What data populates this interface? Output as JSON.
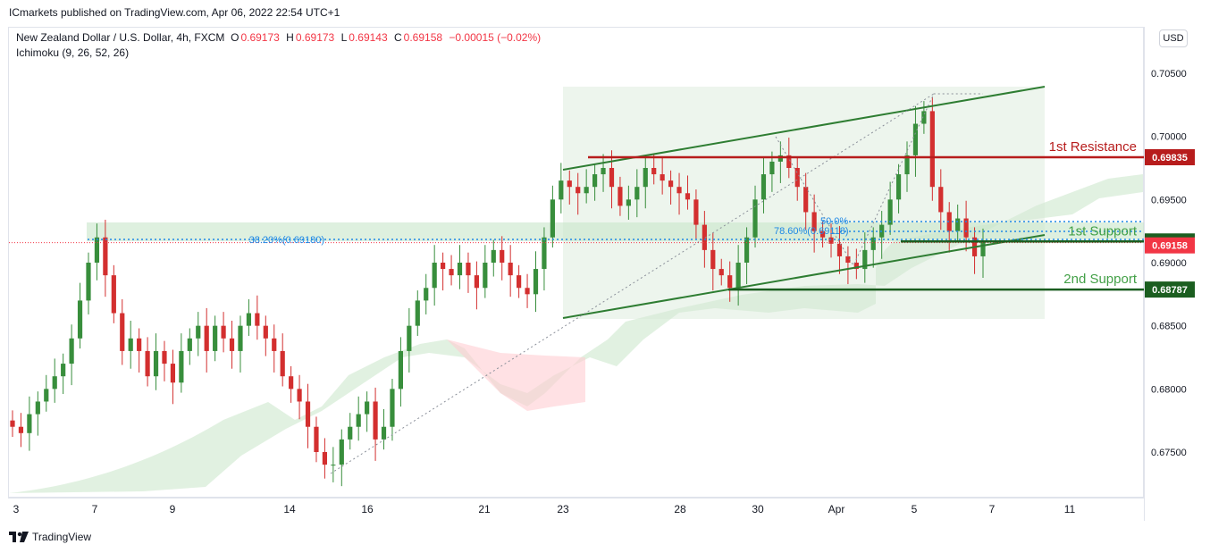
{
  "publisher": "ICmarkets published on TradingView.com, Apr 06, 2022 22:54 UTC+1",
  "legend": {
    "symbol": "New Zealand Dollar / U.S. Dollar, 4h, FXCM",
    "open_label": "O",
    "open": "0.69173",
    "high_label": "H",
    "high": "0.69173",
    "low_label": "L",
    "low": "0.69143",
    "close_label": "C",
    "close": "0.69158",
    "change": "−0.00015 (−0.02%)",
    "indicator": "Ichimoku (9, 26, 52, 26)"
  },
  "currency_button": "USD",
  "brand": "TradingView",
  "colors": {
    "resistance": "#b71c1c",
    "support": "#1b5e20",
    "support_label": "#43a047",
    "fib": "#1e88e5",
    "up_candle": "#26a69a",
    "candle_up_fill": "#388e3c",
    "down_candle": "#d32f2f",
    "cloud_green": "#c8e6c9",
    "cloud_red": "#ffcdd2",
    "current_price": "#f23645"
  },
  "chart_data": {
    "type": "candlestick",
    "y_axis": {
      "ticks": [
        "0.70500",
        "0.70000",
        "0.69500",
        "0.69000",
        "0.68500",
        "0.68000",
        "0.67500"
      ],
      "tick_values": [
        0.705,
        0.7,
        0.695,
        0.69,
        0.685,
        0.68,
        0.675
      ],
      "range": [
        0.6718,
        0.708
      ]
    },
    "x_axis": {
      "ticks": [
        "3",
        "7",
        "9",
        "14",
        "16",
        "21",
        "23",
        "28",
        "30",
        "Apr",
        "5",
        "7",
        "11"
      ]
    },
    "levels": [
      {
        "name": "1st Resistance",
        "price": 0.69835,
        "label": "0.69835",
        "kind": "resistance"
      },
      {
        "name": "1st Support",
        "price": 0.69168,
        "label": "0.69168",
        "kind": "support"
      },
      {
        "name": "2nd Support",
        "price": 0.68787,
        "label": "0.68787",
        "kind": "support"
      }
    ],
    "current_price": {
      "price": 0.69158,
      "label": "0.69158"
    },
    "fib_annotations": [
      {
        "label": "38.20%(0.69180)",
        "price": 0.6918
      },
      {
        "label": "78.60%(0.69118)",
        "price": 0.69118
      },
      {
        "label": "50.0%",
        "price": 0.6923
      }
    ],
    "closes": [
      0.677,
      0.6765,
      0.678,
      0.679,
      0.68,
      0.681,
      0.682,
      0.684,
      0.687,
      0.69,
      0.692,
      0.689,
      0.686,
      0.683,
      0.684,
      0.683,
      0.681,
      0.683,
      0.682,
      0.6805,
      0.683,
      0.684,
      0.685,
      0.683,
      0.685,
      0.684,
      0.683,
      0.685,
      0.686,
      0.685,
      0.684,
      0.683,
      0.681,
      0.68,
      0.679,
      0.677,
      0.675,
      0.674,
      0.674,
      0.676,
      0.677,
      0.678,
      0.679,
      0.676,
      0.677,
      0.68,
      0.683,
      0.685,
      0.687,
      0.688,
      0.69,
      0.6895,
      0.689,
      0.69,
      0.689,
      0.688,
      0.69,
      0.691,
      0.69,
      0.689,
      0.688,
      0.6875,
      0.6895,
      0.692,
      0.695,
      0.6965,
      0.696,
      0.6955,
      0.696,
      0.697,
      0.6975,
      0.696,
      0.6945,
      0.695,
      0.696,
      0.6975,
      0.697,
      0.6965,
      0.696,
      0.6955,
      0.695,
      0.693,
      0.691,
      0.6895,
      0.689,
      0.688,
      0.69,
      0.692,
      0.695,
      0.697,
      0.698,
      0.6985,
      0.6975,
      0.696,
      0.694,
      0.6925,
      0.692,
      0.6915,
      0.6905,
      0.69,
      0.6895,
      0.691,
      0.692,
      0.693,
      0.695,
      0.697,
      0.6985,
      0.701,
      0.702,
      0.696,
      0.694,
      0.6925,
      0.6935,
      0.692,
      0.6905,
      0.6916
    ]
  }
}
